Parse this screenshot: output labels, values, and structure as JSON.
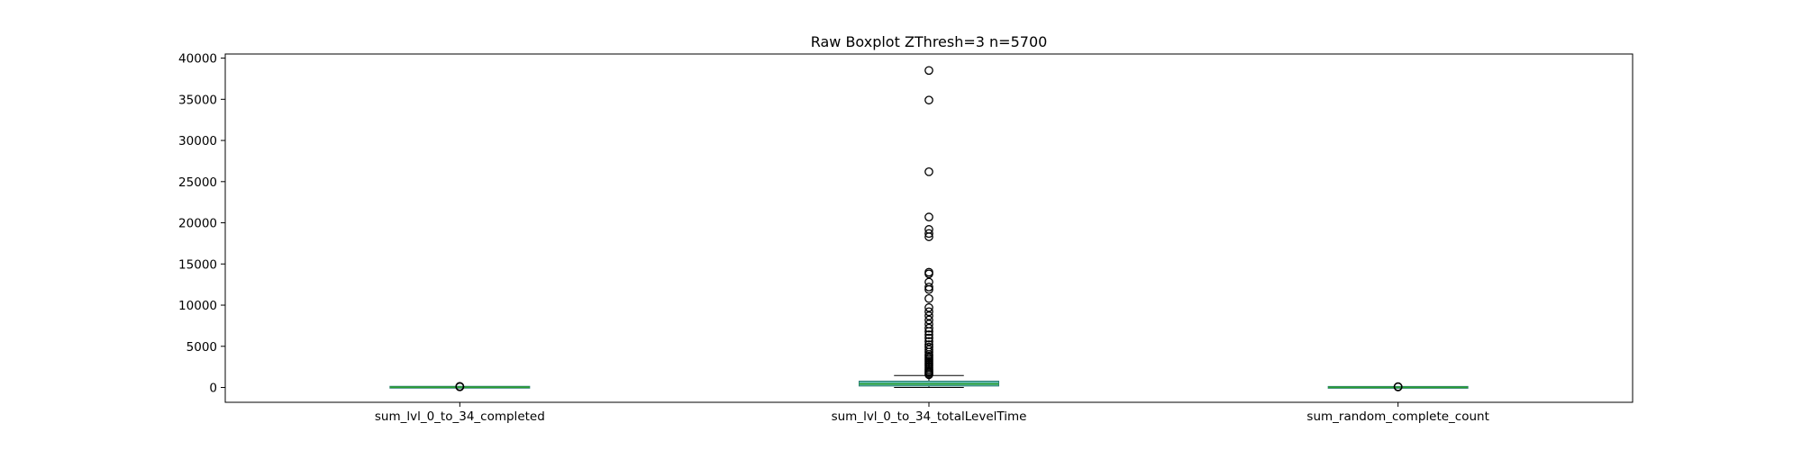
{
  "chart_data": {
    "type": "box",
    "title": "Raw Boxplot ZThresh=3 n=5700",
    "xlabel": "",
    "ylabel": "",
    "ylim": [
      -1800,
      40500
    ],
    "yticks": [
      0,
      5000,
      10000,
      15000,
      20000,
      25000,
      30000,
      35000,
      40000
    ],
    "ytick_labels": [
      "0",
      "5000",
      "10000",
      "15000",
      "20000",
      "25000",
      "30000",
      "35000",
      "40000"
    ],
    "grid": false,
    "colors": {
      "box_fill": "#5fb8ad",
      "box_edge": "#2f7f78",
      "median": "#2ca02c",
      "whisker": "#000000",
      "flier": "#000000"
    },
    "boxes": [
      {
        "category": "sum_lvl_0_to_34_completed",
        "q1": 20,
        "median": 30,
        "q3": 40,
        "whisker_low": 5,
        "whisker_high": 70,
        "fliers": [
          80,
          95,
          110,
          130
        ]
      },
      {
        "category": "sum_lvl_0_to_34_totalLevelTime",
        "q1": 180,
        "median": 430,
        "q3": 770,
        "whisker_low": 0,
        "whisker_high": 1450,
        "fliers": [
          1550,
          1700,
          1850,
          2000,
          2200,
          2400,
          2600,
          2800,
          3000,
          3200,
          3400,
          3600,
          3800,
          4000,
          4300,
          4600,
          4900,
          5200,
          5600,
          6000,
          6400,
          6800,
          7200,
          7700,
          8200,
          8700,
          9200,
          9700,
          10800,
          11900,
          12200,
          12800,
          13800,
          14000,
          18300,
          18700,
          19200,
          20700,
          26200,
          34900,
          38500
        ]
      },
      {
        "category": "sum_random_complete_count",
        "q1": 5,
        "median": 15,
        "q3": 25,
        "whisker_low": 0,
        "whisker_high": 55,
        "fliers": [
          65,
          80,
          100
        ]
      }
    ]
  }
}
